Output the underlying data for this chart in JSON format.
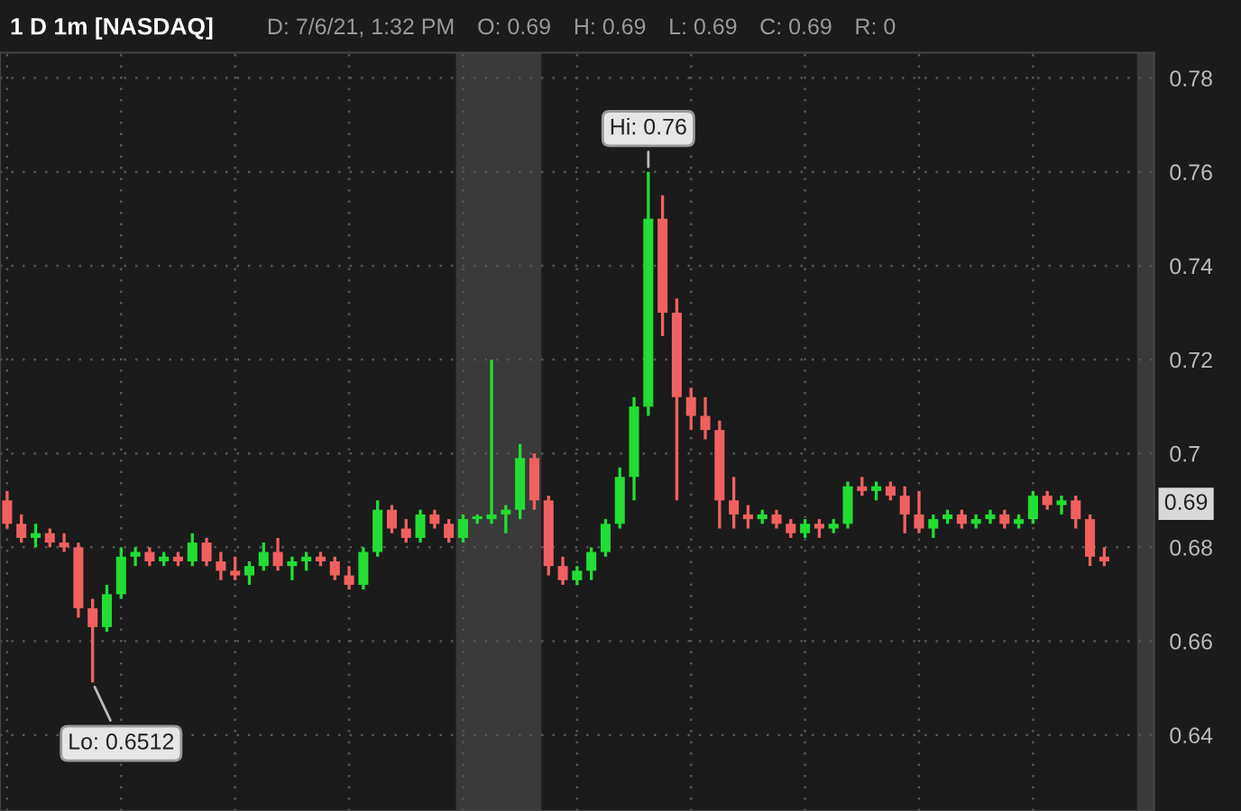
{
  "chart_data": {
    "type": "candlestick",
    "title": "1 D 1m [NASDAQ]",
    "annotations": [
      "D: 7/6/21, 1:32 PM",
      "O: 0.69",
      "H: 0.69",
      "L: 0.69",
      "C: 0.69",
      "R: 0",
      "Hi: 0.76",
      "Lo: 0.6512",
      "0.69"
    ],
    "colors": [
      "#f06060",
      "#f06060",
      "#22dd33",
      "#f06060",
      "#f06060",
      "#f06060",
      "#f06060",
      "#22dd33",
      "#22dd33",
      "#22dd33",
      "#f06060",
      "#22dd33",
      "#f06060",
      "#22dd33",
      "#f06060",
      "#f06060",
      "#f06060",
      "#22dd33",
      "#22dd33",
      "#f06060",
      "#22dd33",
      "#22dd33",
      "#f06060",
      "#f06060",
      "#f06060",
      "#22dd33",
      "#22dd33",
      "#f06060",
      "#f06060",
      "#22dd33",
      "#f06060",
      "#f06060",
      "#22dd33",
      "#22dd33",
      "#22dd33",
      "#22dd33",
      "#22dd33",
      "#f06060",
      "#f06060",
      "#f06060",
      "#22dd33",
      "#22dd33",
      "#22dd33",
      "#22dd33",
      "#22dd33",
      "#22dd33",
      "#f06060",
      "#f06060",
      "#f06060",
      "#f06060",
      "#f06060",
      "#f06060",
      "#f06060",
      "#22dd33",
      "#f06060",
      "#f06060",
      "#22dd33",
      "#f06060",
      "#22dd33",
      "#22dd33",
      "#f06060",
      "#22dd33",
      "#f06060",
      "#f06060",
      "#f06060",
      "#22dd33",
      "#22dd33",
      "#f06060",
      "#22dd33",
      "#22dd33",
      "#f06060",
      "#22dd33",
      "#22dd33",
      "#f06060",
      "#22dd33",
      "#f06060",
      "#f06060",
      "#f06060"
    ],
    "categories": [
      null,
      null,
      null,
      null,
      null,
      null,
      null,
      null,
      null,
      null,
      null,
      null,
      null,
      null,
      null,
      null,
      null,
      null,
      null,
      null,
      null,
      null,
      null,
      null,
      null,
      null,
      null,
      null,
      null,
      null,
      null,
      null,
      null,
      null,
      null,
      null,
      null,
      null,
      null,
      null,
      null,
      null,
      null,
      null,
      null,
      null,
      null,
      null,
      null,
      null,
      null,
      null,
      null,
      null,
      null,
      null,
      null,
      null,
      null,
      null,
      null,
      null,
      null,
      null,
      null,
      null,
      null,
      null,
      null,
      null,
      null,
      null,
      null,
      null,
      null,
      null,
      null,
      null
    ],
    "ohlc": [
      [
        0.69,
        0.692,
        0.684,
        0.685
      ],
      [
        0.685,
        0.687,
        0.681,
        0.682
      ],
      [
        0.682,
        0.685,
        0.68,
        0.683
      ],
      [
        0.683,
        0.684,
        0.68,
        0.681
      ],
      [
        0.681,
        0.683,
        0.679,
        0.68
      ],
      [
        0.68,
        0.681,
        0.665,
        0.667
      ],
      [
        0.667,
        0.669,
        0.6512,
        0.663
      ],
      [
        0.663,
        0.672,
        0.662,
        0.67
      ],
      [
        0.67,
        0.68,
        0.669,
        0.678
      ],
      [
        0.678,
        0.68,
        0.676,
        0.679
      ],
      [
        0.679,
        0.68,
        0.676,
        0.677
      ],
      [
        0.677,
        0.679,
        0.676,
        0.678
      ],
      [
        0.678,
        0.679,
        0.676,
        0.677
      ],
      [
        0.677,
        0.683,
        0.676,
        0.681
      ],
      [
        0.681,
        0.682,
        0.676,
        0.677
      ],
      [
        0.677,
        0.679,
        0.673,
        0.675
      ],
      [
        0.675,
        0.678,
        0.673,
        0.674
      ],
      [
        0.674,
        0.677,
        0.672,
        0.676
      ],
      [
        0.676,
        0.681,
        0.675,
        0.679
      ],
      [
        0.679,
        0.682,
        0.675,
        0.676
      ],
      [
        0.676,
        0.678,
        0.673,
        0.677
      ],
      [
        0.677,
        0.679,
        0.675,
        0.678
      ],
      [
        0.678,
        0.679,
        0.676,
        0.677
      ],
      [
        0.677,
        0.678,
        0.673,
        0.674
      ],
      [
        0.674,
        0.676,
        0.671,
        0.672
      ],
      [
        0.672,
        0.68,
        0.671,
        0.679
      ],
      [
        0.679,
        0.69,
        0.678,
        0.688
      ],
      [
        0.688,
        0.689,
        0.683,
        0.684
      ],
      [
        0.684,
        0.686,
        0.681,
        0.682
      ],
      [
        0.682,
        0.688,
        0.681,
        0.687
      ],
      [
        0.687,
        0.688,
        0.684,
        0.685
      ],
      [
        0.685,
        0.686,
        0.681,
        0.682
      ],
      [
        0.682,
        0.687,
        0.681,
        0.686
      ],
      [
        0.686,
        0.687,
        0.685,
        0.686
      ],
      [
        0.686,
        0.72,
        0.685,
        0.687
      ],
      [
        0.687,
        0.689,
        0.683,
        0.688
      ],
      [
        0.688,
        0.702,
        0.686,
        0.699
      ],
      [
        0.699,
        0.7,
        0.688,
        0.69
      ],
      [
        0.69,
        0.691,
        0.674,
        0.676
      ],
      [
        0.676,
        0.678,
        0.672,
        0.673
      ],
      [
        0.673,
        0.676,
        0.672,
        0.675
      ],
      [
        0.675,
        0.68,
        0.673,
        0.679
      ],
      [
        0.679,
        0.686,
        0.678,
        0.685
      ],
      [
        0.685,
        0.697,
        0.684,
        0.695
      ],
      [
        0.695,
        0.712,
        0.69,
        0.71
      ],
      [
        0.71,
        0.76,
        0.708,
        0.75
      ],
      [
        0.75,
        0.755,
        0.725,
        0.73
      ],
      [
        0.73,
        0.733,
        0.69,
        0.712
      ],
      [
        0.712,
        0.714,
        0.705,
        0.708
      ],
      [
        0.708,
        0.712,
        0.703,
        0.705
      ],
      [
        0.705,
        0.707,
        0.684,
        0.69
      ],
      [
        0.69,
        0.695,
        0.684,
        0.687
      ],
      [
        0.687,
        0.689,
        0.684,
        0.686
      ],
      [
        0.686,
        0.688,
        0.685,
        0.687
      ],
      [
        0.687,
        0.688,
        0.684,
        0.685
      ],
      [
        0.685,
        0.686,
        0.682,
        0.683
      ],
      [
        0.683,
        0.686,
        0.682,
        0.685
      ],
      [
        0.685,
        0.686,
        0.682,
        0.684
      ],
      [
        0.684,
        0.686,
        0.683,
        0.685
      ],
      [
        0.685,
        0.694,
        0.684,
        0.693
      ],
      [
        0.693,
        0.695,
        0.691,
        0.692
      ],
      [
        0.692,
        0.694,
        0.69,
        0.693
      ],
      [
        0.693,
        0.694,
        0.69,
        0.691
      ],
      [
        0.691,
        0.693,
        0.683,
        0.687
      ],
      [
        0.687,
        0.692,
        0.683,
        0.684
      ],
      [
        0.684,
        0.687,
        0.682,
        0.686
      ],
      [
        0.686,
        0.688,
        0.685,
        0.687
      ],
      [
        0.687,
        0.688,
        0.684,
        0.685
      ],
      [
        0.685,
        0.687,
        0.684,
        0.686
      ],
      [
        0.686,
        0.688,
        0.685,
        0.687
      ],
      [
        0.687,
        0.688,
        0.684,
        0.685
      ],
      [
        0.685,
        0.687,
        0.684,
        0.686
      ],
      [
        0.686,
        0.692,
        0.685,
        0.691
      ],
      [
        0.691,
        0.692,
        0.688,
        0.689
      ],
      [
        0.689,
        0.691,
        0.687,
        0.69
      ],
      [
        0.69,
        0.691,
        0.684,
        0.686
      ],
      [
        0.686,
        0.687,
        0.676,
        0.678
      ],
      [
        0.678,
        0.68,
        0.676,
        0.677
      ]
    ],
    "ylim": [
      0.6238,
      0.7854
    ],
    "yticks": [
      0.64,
      0.66,
      0.68,
      {
        "value": 0.7,
        "label": "0.7"
      },
      0.72,
      0.74,
      0.76,
      0.78
    ],
    "grid": true
  }
}
